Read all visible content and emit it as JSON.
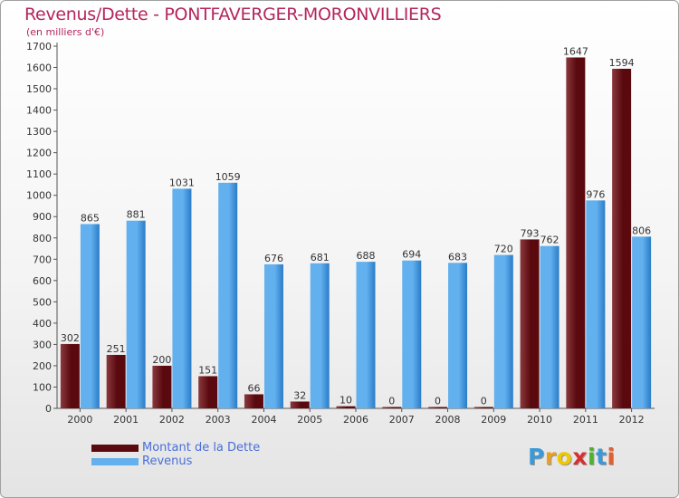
{
  "title": "Revenus/Dette - PONTFAVERGER-MORONVILLIERS",
  "subtitle": "(en milliers d'€)",
  "logo": {
    "letters": [
      "P",
      "r",
      "o",
      "x",
      "i",
      "t",
      "i"
    ],
    "colors": [
      "#3a9ad9",
      "#e8a020",
      "#f0c800",
      "#d83030",
      "#50b030",
      "#3a9ad9",
      "#e06030"
    ]
  },
  "colors": {
    "dette_dark": "#5a0a0e",
    "dette_light": "#8a3a3e",
    "revenus_dark": "#2a7cc8",
    "revenus_light": "#62b0ee"
  },
  "chart_data": {
    "type": "bar",
    "title": "Revenus/Dette - PONTFAVERGER-MORONVILLIERS",
    "ylabel": "(en milliers d'€)",
    "xlabel": "",
    "ylim": [
      0,
      1700
    ],
    "ytick_step": 100,
    "grid": false,
    "legend_position": "bottom-left",
    "categories": [
      "2000",
      "2001",
      "2002",
      "2003",
      "2004",
      "2005",
      "2006",
      "2007",
      "2008",
      "2009",
      "2010",
      "2011",
      "2012"
    ],
    "series": [
      {
        "name": "Montant de la Dette",
        "values": [
          302,
          251,
          200,
          151,
          66,
          32,
          10,
          0,
          0,
          0,
          793,
          1647,
          1594
        ]
      },
      {
        "name": "Revenus",
        "values": [
          865,
          881,
          1031,
          1059,
          676,
          681,
          688,
          694,
          683,
          720,
          762,
          976,
          806
        ]
      }
    ]
  }
}
